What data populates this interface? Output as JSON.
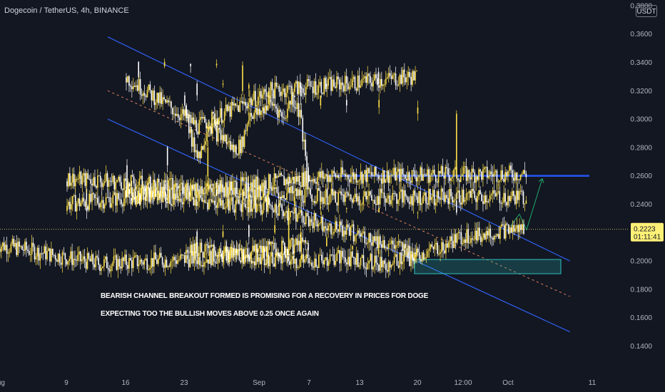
{
  "header": {
    "symbol": "Dogecoin / TetherUS, 4h, BINANCE",
    "currency": "USDT"
  },
  "annotations": {
    "line1": "BEARISH CHANNEL BREAKOUT FORMED IS PROMISING FOR A RECOVERY IN PRICES FOR DOGE",
    "line2": "EXPECTING TOO THE BULLISH MOVES ABOVE 0.25 ONCE AGAIN"
  },
  "chart_data": {
    "type": "candlestick",
    "symbol": "Dogecoin / TetherUS",
    "interval": "4h",
    "exchange": "BINANCE",
    "ylim": [
      0.13,
      0.38
    ],
    "y_ticks": [
      "0.3800",
      "0.3600",
      "0.3400",
      "0.3200",
      "0.3000",
      "0.2800",
      "0.2600",
      "0.2400",
      "0.2000",
      "0.1800",
      "0.1600",
      "0.1400"
    ],
    "x_ticks": [
      "Aug",
      "9",
      "16",
      "23",
      "Sep",
      "7",
      "13",
      "20",
      "12:00",
      "Oct",
      "11"
    ],
    "last_price": "0.2223",
    "countdown": "01:11:41",
    "close_path": [
      [
        "Aug",
        0.212
      ],
      [
        "5",
        0.198
      ],
      [
        "6",
        0.202
      ],
      [
        "7",
        0.212
      ],
      [
        "8",
        0.28
      ],
      [
        "9",
        0.24
      ],
      [
        "10",
        0.26
      ],
      [
        "11",
        0.262
      ],
      [
        "12",
        0.295
      ],
      [
        "13",
        0.31
      ],
      [
        "14",
        0.315
      ],
      [
        "15",
        0.345
      ],
      [
        "16",
        0.33
      ],
      [
        "17",
        0.295
      ],
      [
        "18",
        0.32
      ],
      [
        "19",
        0.325
      ],
      [
        "20",
        0.33
      ],
      [
        "21",
        0.33
      ],
      [
        "22",
        0.318
      ],
      [
        "23",
        0.32
      ],
      [
        "24",
        0.283
      ],
      [
        "25",
        0.275
      ],
      [
        "26",
        0.298
      ],
      [
        "27",
        0.29
      ],
      [
        "28",
        0.286
      ],
      [
        "29",
        0.278
      ],
      [
        "30",
        0.282
      ],
      [
        "31",
        0.305
      ],
      [
        "Sep",
        0.303
      ],
      [
        "2",
        0.31
      ],
      [
        "3",
        0.31
      ],
      [
        "4",
        0.3
      ],
      [
        "5",
        0.315
      ],
      [
        "6",
        0.305
      ],
      [
        "7",
        0.255
      ],
      [
        "8",
        0.255
      ],
      [
        "9",
        0.258
      ],
      [
        "10",
        0.245
      ],
      [
        "11",
        0.245
      ],
      [
        "12",
        0.24
      ],
      [
        "13",
        0.24
      ],
      [
        "14",
        0.243
      ],
      [
        "15",
        0.248
      ],
      [
        "16",
        0.25
      ],
      [
        "17",
        0.242
      ],
      [
        "18",
        0.238
      ],
      [
        "19",
        0.222
      ],
      [
        "20",
        0.205
      ],
      [
        "21",
        0.215
      ],
      [
        "22",
        0.225
      ],
      [
        "23",
        0.21
      ],
      [
        "24",
        0.205
      ],
      [
        "25",
        0.202
      ],
      [
        "26",
        0.2
      ],
      [
        "27",
        0.202
      ],
      [
        "28",
        0.198
      ],
      [
        "29",
        0.205
      ],
      [
        "30",
        0.218
      ],
      [
        "Oct",
        0.2223
      ]
    ],
    "drawings": [
      {
        "name": "channel-upper",
        "type": "trendline",
        "from": [
          "Aug 4",
          0.358
        ],
        "to": [
          "Oct 5",
          0.2
        ]
      },
      {
        "name": "channel-mid",
        "type": "dashed trendline",
        "from": [
          "Aug 4",
          0.32
        ],
        "to": [
          "Oct 5",
          0.175
        ]
      },
      {
        "name": "channel-lower",
        "type": "trendline",
        "from": [
          "Aug 4",
          0.3
        ],
        "to": [
          "Oct 5",
          0.15
        ]
      },
      {
        "name": "resistance",
        "type": "horizontal line",
        "price": 0.26,
        "from": "Sep 8",
        "to": "Oct 6"
      },
      {
        "name": "support-zone",
        "type": "rectangle",
        "price_range": [
          0.1925,
          0.2
        ]
      },
      {
        "name": "projection",
        "type": "arrow path",
        "points": [
          0.225,
          0.233,
          0.222,
          0.258
        ]
      }
    ],
    "grid": false,
    "colors": {
      "background": "#131722",
      "candle_up": "#ffe14a",
      "candle_down": "#ffffff",
      "channel": "#2e5ff0",
      "midline": "#e0845a",
      "resistance": "#2452ea",
      "support_zone": "#2ec4c0",
      "projection": "#1fa86a",
      "last_price_tag": "#fff176"
    }
  }
}
